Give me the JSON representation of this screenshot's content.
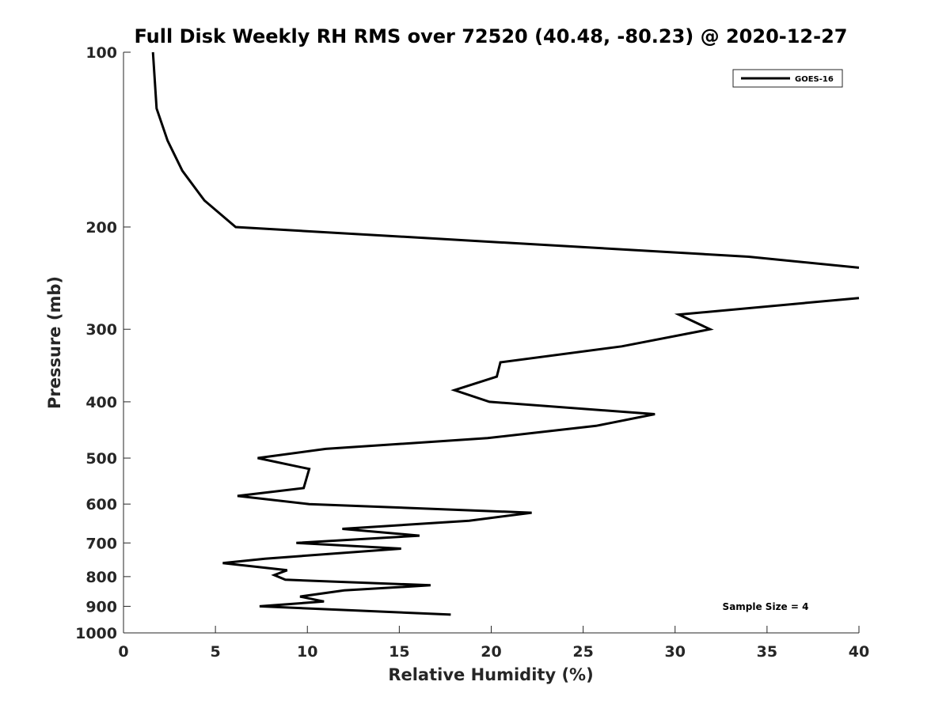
{
  "chart_data": {
    "type": "line",
    "title": "Full Disk Weekly RH RMS over 72520 (40.48, -80.23) @ 2020-12-27",
    "xlabel": "Relative Humidity (%)",
    "ylabel": "Pressure (mb)",
    "xlim": [
      0,
      40
    ],
    "ylim": [
      100,
      1000
    ],
    "y_scale": "log",
    "y_reversed": true,
    "x_ticks": [
      0,
      5,
      10,
      15,
      20,
      25,
      30,
      35,
      40
    ],
    "y_ticks": [
      100,
      200,
      300,
      400,
      500,
      600,
      700,
      800,
      900,
      1000
    ],
    "grid": false,
    "legend": {
      "position": "top-right",
      "entries": [
        "GOES-16"
      ]
    },
    "annotations": [
      {
        "text": "Sample Size = 4",
        "position": "bottom-right"
      }
    ],
    "series": [
      {
        "name": "GOES-16",
        "color": "#000000",
        "x": [
          1.6,
          1.8,
          2.4,
          3.2,
          4.4,
          6.1,
          34,
          40,
          null,
          40,
          30.2,
          31.9,
          27.1,
          20.5,
          20.3,
          18,
          19.9,
          28.9,
          25.7,
          19.8,
          11,
          7.3,
          10.1,
          9.8,
          6.2,
          10.1,
          22.2,
          18.8,
          11.9,
          16.1,
          9.4,
          15.1,
          7.7,
          5.4,
          8.9,
          8.2,
          8.8,
          16.7,
          12,
          9.6,
          10.9,
          7.4,
          17.8
        ],
        "y": [
          100,
          125,
          142,
          160,
          180,
          200,
          225,
          235,
          null,
          265,
          283,
          300,
          321,
          342,
          362,
          382,
          400,
          420,
          440,
          462,
          482,
          500,
          522,
          563,
          581,
          600,
          621,
          641,
          662,
          680,
          700,
          716,
          745,
          758,
          780,
          795,
          810,
          828,
          845,
          866,
          883,
          900,
          930
        ]
      }
    ]
  }
}
